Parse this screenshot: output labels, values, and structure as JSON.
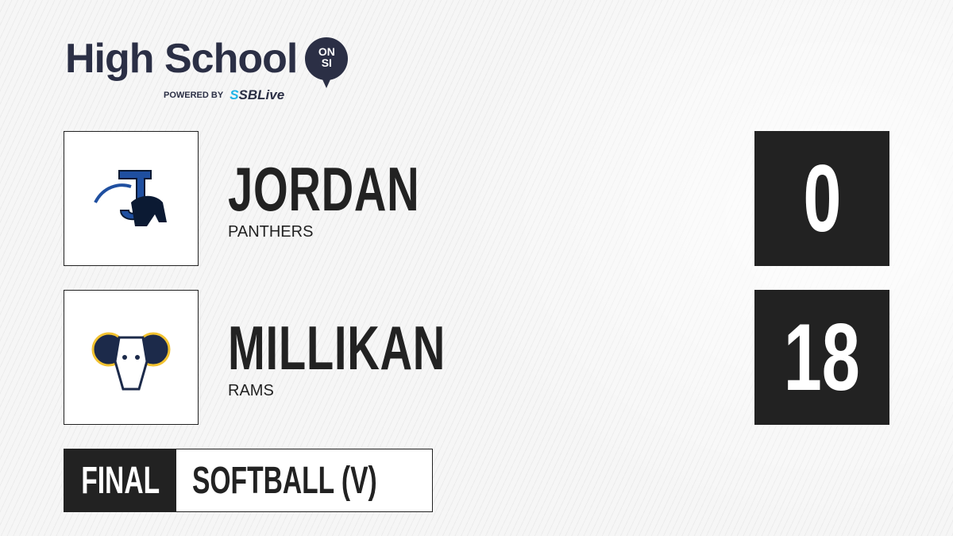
{
  "brand": {
    "title": "High School",
    "badge_top": "ON",
    "badge_bottom": "SI",
    "powered_by": "POWERED BY",
    "partner_prefix": "S",
    "partner": "SBLive"
  },
  "teams": [
    {
      "name": "JORDAN",
      "mascot": "PANTHERS",
      "score": "0",
      "logo": "panthers-logo",
      "colors": [
        "#1f4fa0",
        "#0b1a33"
      ]
    },
    {
      "name": "MILLIKAN",
      "mascot": "RAMS",
      "score": "18",
      "logo": "rams-logo",
      "colors": [
        "#1c2a4a",
        "#f2c230"
      ]
    }
  ],
  "footer": {
    "status": "FINAL",
    "sport": "SOFTBALL (V)"
  }
}
